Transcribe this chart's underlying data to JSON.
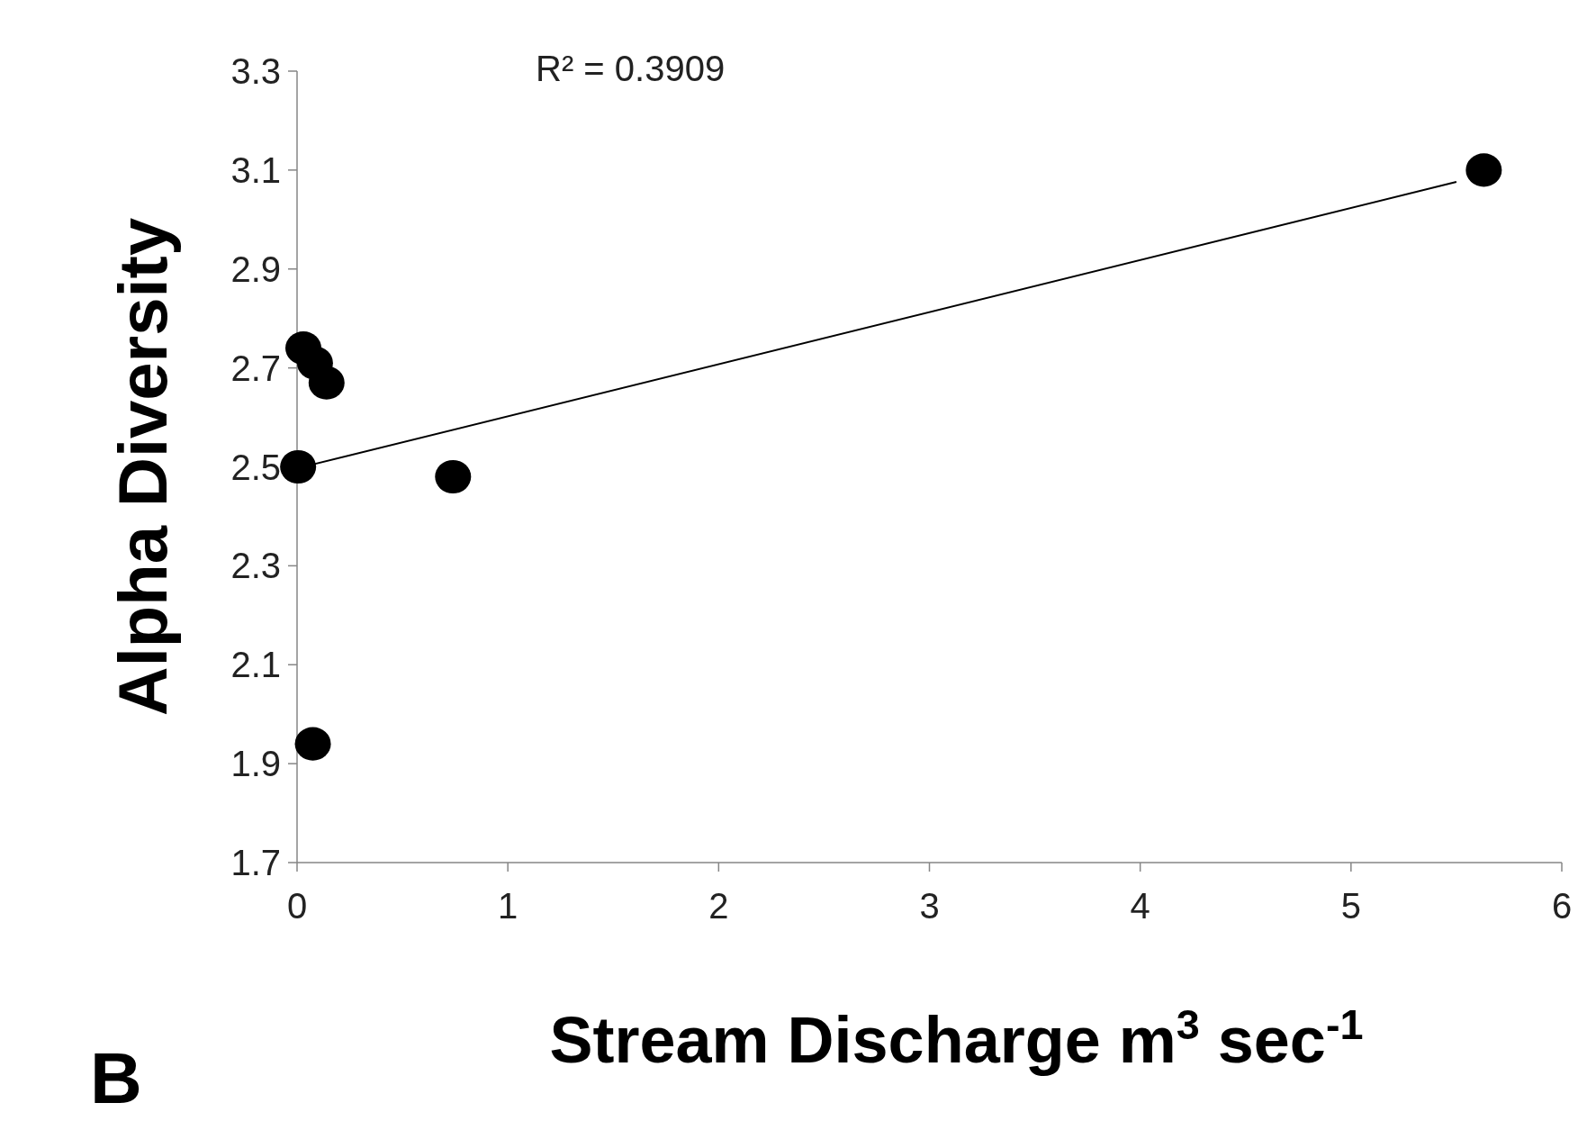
{
  "chart_data": {
    "type": "scatter",
    "xlabel": "Stream Discharge m$^{3}$ sec$^{-1}$",
    "ylabel": "Alpha Diversity",
    "annotations": [
      "R² = 0.3909",
      "B"
    ],
    "xlim": [
      0,
      6
    ],
    "xticks": [
      0,
      1,
      2,
      3,
      4,
      5,
      6
    ],
    "ylim": [
      1.7,
      3.3
    ],
    "yticks": [
      1.7,
      1.9,
      2.1,
      2.3,
      2.5,
      2.7,
      2.9,
      3.1,
      3.3
    ],
    "grid": false,
    "series": [
      {
        "color": "#000000",
        "marker": "circle",
        "x": [
          0.03,
          0.085,
          0.14,
          0.005,
          0.74,
          0.075,
          5.63
        ],
        "values": [
          2.74,
          2.71,
          2.67,
          2.5,
          2.48,
          1.94,
          3.1
        ]
      },
      {
        "type": "line",
        "color": "#000000",
        "x": [
          0,
          5.5
        ],
        "values": [
          2.497,
          3.076
        ]
      }
    ]
  }
}
